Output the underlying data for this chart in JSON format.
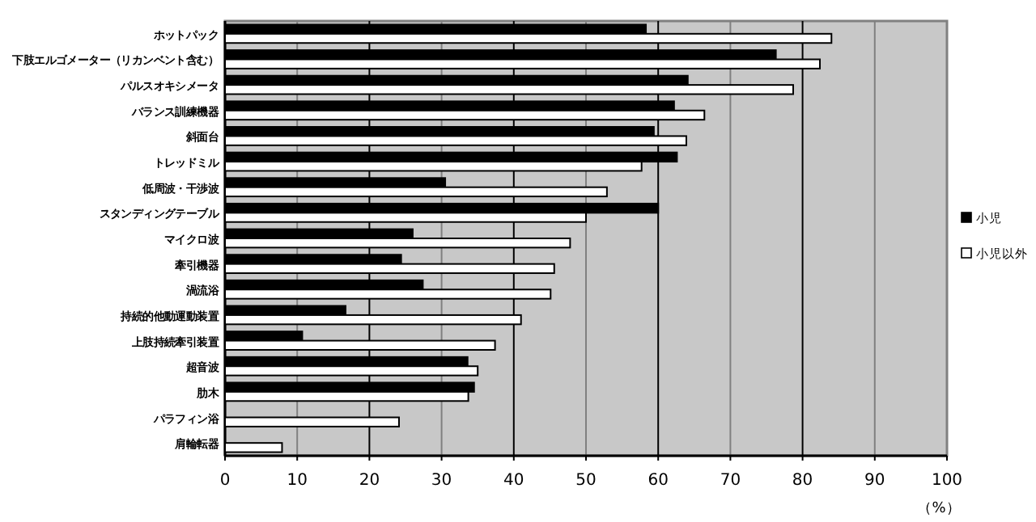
{
  "chart_data": {
    "type": "bar",
    "orientation": "horizontal",
    "xlabel": "（%）",
    "categories": [
      "ホットパック",
      "下肢エルゴメーター（リカンベント含む）",
      "パルスオキシメータ",
      "バランス訓練機器",
      "斜面台",
      "トレッドミル",
      "低周波・干渉波",
      "スタンディングテーブル",
      "マイクロ波",
      "牽引機器",
      "渦流浴",
      "持続的他動運動装置",
      "上肢持続牽引装置",
      "超音波",
      "肋木",
      "パラフィン浴",
      "肩輪転器"
    ],
    "series": [
      {
        "name": "小児",
        "color": "#000000",
        "values": [
          58.3,
          76.3,
          64.1,
          62.2,
          59.4,
          62.6,
          30.5,
          60.0,
          26.0,
          24.4,
          27.4,
          16.7,
          10.7,
          33.6,
          34.5,
          null,
          null
        ]
      },
      {
        "name": "小児以外",
        "color": "#ffffff",
        "values": [
          84.0,
          82.4,
          78.7,
          66.4,
          63.9,
          57.7,
          52.9,
          50.0,
          47.8,
          45.6,
          45.1,
          41.0,
          37.4,
          35.0,
          33.7,
          24.1,
          7.9
        ]
      }
    ],
    "xlim": [
      0,
      100
    ],
    "xticks": [
      0,
      10,
      20,
      30,
      40,
      50,
      60,
      70,
      80,
      90,
      100
    ],
    "grid": "x",
    "legend": "right"
  }
}
